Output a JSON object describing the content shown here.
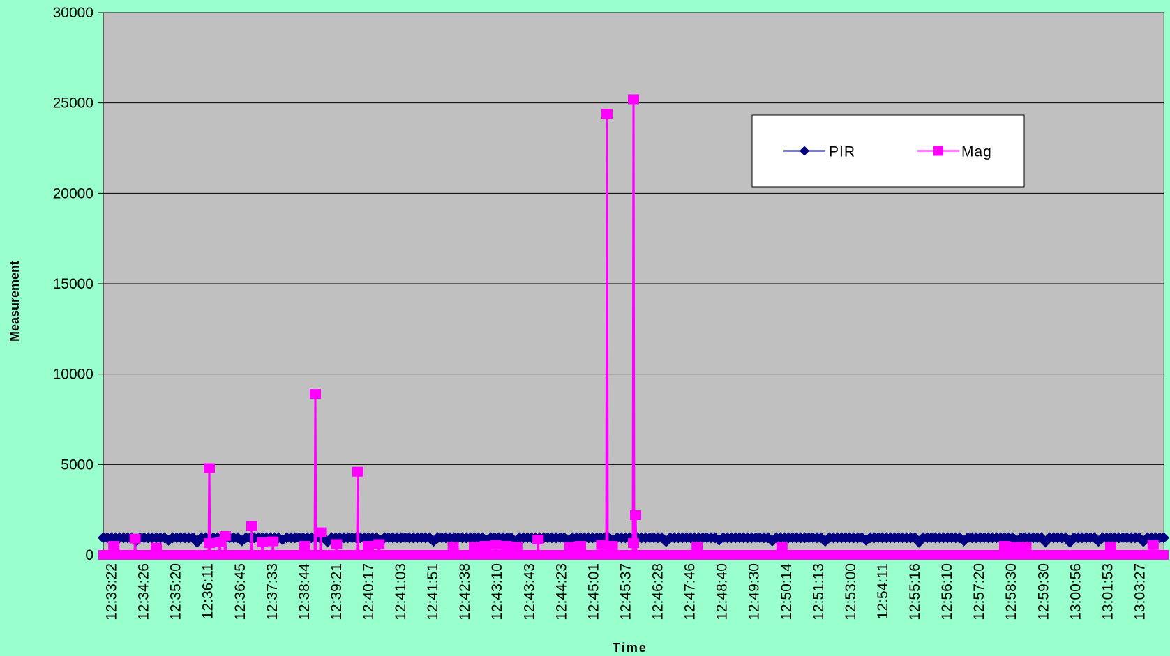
{
  "chart_data": {
    "type": "line",
    "title": "",
    "xlabel": "Time",
    "ylabel": "Measurement",
    "ylim": [
      0,
      30000
    ],
    "yticks": [
      0,
      5000,
      10000,
      15000,
      20000,
      25000,
      30000
    ],
    "x_tick_labels": [
      "12:33:22",
      "12:34:26",
      "12:35:20",
      "12:36:11",
      "12:36:45",
      "12:37:33",
      "12:38:44",
      "12:39:21",
      "12:40:17",
      "12:41:03",
      "12:41:51",
      "12:42:38",
      "12:43:10",
      "12:43:43",
      "12:44:23",
      "12:45:01",
      "12:45:37",
      "12:46:28",
      "12:47:46",
      "12:48:40",
      "12:49:30",
      "12:50:14",
      "12:51:13",
      "12:53:00",
      "12:54:11",
      "12:55:16",
      "12:56:10",
      "12:57:20",
      "12:58:30",
      "12:59:30",
      "13:00:56",
      "13:01:53",
      "13:03:27"
    ],
    "grid": true,
    "legend": "top-right",
    "colors": {
      "plot_background": "#c0c0c0",
      "figure_background": "#99ffcc",
      "PIR": "#000080",
      "Mag": "#ff00ff",
      "gridline": "#000000"
    },
    "series": [
      {
        "name": "PIR",
        "marker": "diamond",
        "baseline": 950,
        "dips": [
          [
            0.03,
            750
          ],
          [
            0.06,
            820
          ],
          [
            0.09,
            700
          ],
          [
            0.13,
            780
          ],
          [
            0.17,
            850
          ],
          [
            0.21,
            720
          ],
          [
            0.26,
            800
          ],
          [
            0.31,
            760
          ],
          [
            0.36,
            820
          ],
          [
            0.39,
            700
          ],
          [
            0.44,
            780
          ],
          [
            0.48,
            800
          ],
          [
            0.53,
            740
          ],
          [
            0.58,
            820
          ],
          [
            0.63,
            780
          ],
          [
            0.68,
            760
          ],
          [
            0.72,
            820
          ],
          [
            0.77,
            700
          ],
          [
            0.81,
            780
          ],
          [
            0.86,
            740
          ],
          [
            0.89,
            720
          ],
          [
            0.91,
            700
          ],
          [
            0.94,
            760
          ],
          [
            0.98,
            740
          ]
        ]
      },
      {
        "name": "Mag",
        "marker": "square",
        "baseline": 0,
        "spikes": [
          [
            0.01,
            500
          ],
          [
            0.03,
            900
          ],
          [
            0.05,
            400
          ],
          [
            0.1,
            650
          ],
          [
            0.11,
            700
          ],
          [
            0.1,
            4800
          ],
          [
            0.115,
            1050
          ],
          [
            0.14,
            1600
          ],
          [
            0.15,
            700
          ],
          [
            0.16,
            750
          ],
          [
            0.19,
            500
          ],
          [
            0.2,
            8900
          ],
          [
            0.205,
            1250
          ],
          [
            0.22,
            600
          ],
          [
            0.24,
            4600
          ],
          [
            0.25,
            500
          ],
          [
            0.26,
            600
          ],
          [
            0.33,
            450
          ],
          [
            0.35,
            450
          ],
          [
            0.36,
            500
          ],
          [
            0.37,
            550
          ],
          [
            0.38,
            500
          ],
          [
            0.39,
            450
          ],
          [
            0.41,
            850
          ],
          [
            0.44,
            450
          ],
          [
            0.45,
            500
          ],
          [
            0.47,
            550
          ],
          [
            0.48,
            500
          ],
          [
            0.475,
            24400
          ],
          [
            0.5,
            650
          ],
          [
            0.5,
            25200
          ],
          [
            0.502,
            2200
          ],
          [
            0.56,
            450
          ],
          [
            0.64,
            450
          ],
          [
            0.85,
            500
          ],
          [
            0.86,
            450
          ],
          [
            0.87,
            450
          ],
          [
            0.95,
            450
          ],
          [
            0.99,
            550
          ]
        ]
      }
    ]
  }
}
